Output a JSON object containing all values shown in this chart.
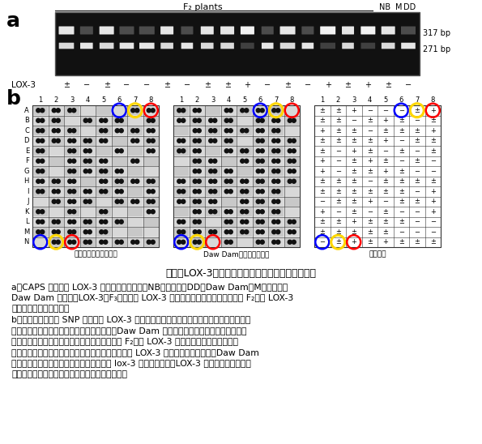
{
  "label_a": "a",
  "label_b": "b",
  "gel_label_f2": "F₂ plants",
  "gel_label_nb": "NB",
  "gel_label_m": "M",
  "gel_label_dd": "DD",
  "gel_bp1": "317 bp",
  "gel_bp2": "271 bp",
  "lox3_label": "LOX-3",
  "lox3_signs": [
    "±",
    "−",
    "±",
    "−",
    "−",
    "±",
    "−",
    "±",
    "±",
    "+",
    "−",
    "±",
    "−",
    "+",
    "±",
    "+",
    "±",
    "−"
  ],
  "panel_label_0": "日本晴型の対立遙伝子",
  "panel_label_1": "Daw Dam型の対立遙伝子",
  "panel_label_2": "遙伝子型",
  "row_labels": [
    "A",
    "B",
    "C",
    "D",
    "E",
    "F",
    "G",
    "H",
    "I",
    "J",
    "K",
    "L",
    "M",
    "N"
  ],
  "col_labels": [
    "1",
    "2",
    "3",
    "4",
    "5",
    "6",
    "7",
    "8"
  ],
  "caption_title": "図２　LOX-3　が欠けているイネの簡易な選抜方法",
  "cap_a1": "a．CAPS 法による LOX-3 遙伝子の多型解析。NB：日本晴、DD：Daw Dam、M：日本晴と",
  "cap_a2": "Daw Dam の混合。LOX-3：F₃種子中の LOX-3 タンパク質の有無から評価した F₂株の LOX-3",
  "cap_a3": "の有無に関する表現型。",
  "cap_b1": "b．どっとブロット SNP 法による LOX-3 遙伝子の多型解析。左パネル：日本晴型の対立遙",
  "cap_b2": "伝子検出用プローブによる検出、中パネル：Daw Dam 型の対立遙伝子検出用プローブによ",
  "cap_b3": "る検出、右パネル：左中のパネルより得られた F₂株の LOX-3 の有無に関する表現型。日",
  "cap_b4": "本晴型検出用プローブのみで検出されるイネが正常 LOX-3 遙伝子ホモ型（赤）、Daw Dam",
  "cap_b5": "型検出用プローブのみで検出されるイネが lox-3 遙伝子ホモ型（LOX-3 欠失型）　（青）、",
  "cap_b6": "そして双方で検出されるイネがヘテロ型（黄）。",
  "right_panel": [
    [
      "±",
      "±",
      "+",
      "−",
      "−",
      "−",
      "±",
      "+"
    ],
    [
      "±",
      "±",
      "−",
      "±",
      "+",
      "±",
      "−",
      "±"
    ],
    [
      "+",
      "±",
      "±",
      "−",
      "±",
      "±",
      "±",
      "+"
    ],
    [
      "±",
      "±",
      "±",
      "±",
      "+",
      "−",
      "±",
      "±"
    ],
    [
      "±",
      "−",
      "+",
      "±",
      "−",
      "±",
      "−",
      "±"
    ],
    [
      "+",
      "−",
      "±",
      "+",
      "±",
      "−",
      "±",
      "−"
    ],
    [
      "+",
      "−",
      "±",
      "±",
      "+",
      "±",
      "−",
      "−"
    ],
    [
      "±",
      "±",
      "±",
      "−",
      "±",
      "±",
      "±",
      "±"
    ],
    [
      "±",
      "±",
      "±",
      "±",
      "±",
      "±",
      "−",
      "+"
    ],
    [
      "−",
      "±",
      "±",
      "+",
      "−",
      "±",
      "±",
      "+"
    ],
    [
      "+",
      "−",
      "±",
      "−",
      "±",
      "−",
      "−",
      "+"
    ],
    [
      "±",
      "±",
      "+",
      "±",
      "±",
      "±",
      "−",
      "−"
    ],
    [
      "±",
      "±",
      "±",
      "±",
      "±",
      "−",
      "−",
      "−"
    ],
    [
      "−",
      "±",
      "+",
      "±",
      "+",
      "±",
      "±",
      "±"
    ]
  ],
  "bg_color": "#ffffff"
}
